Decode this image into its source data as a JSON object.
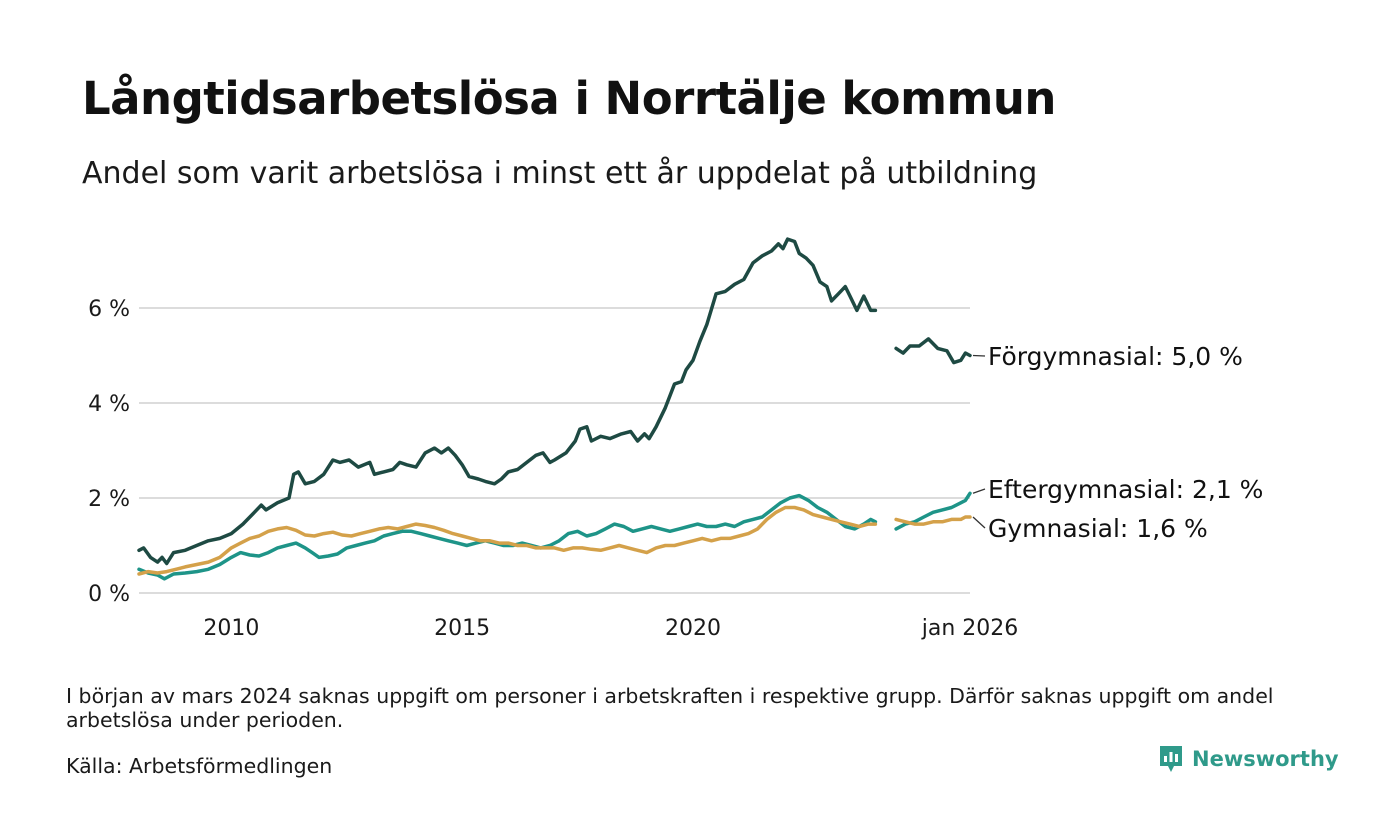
{
  "header": {
    "title": "Långtidsarbetslösa i Norrtälje kommun",
    "subtitle": "Andel som varit arbetslösa i minst ett år uppdelat på utbildning"
  },
  "footer": {
    "note": "I början av mars 2024 saknas uppgift om personer i arbetskraften i respektive grupp. Därför saknas uppgift om andel arbetslösa under perioden.",
    "source": "Källa: Arbetsförmedlingen",
    "logo_text": "Newsworthy",
    "logo_icon": "newsworthy-logo-icon"
  },
  "chart_data": {
    "type": "line",
    "title": "Långtidsarbetslösa i Norrtälje kommun",
    "xlabel": "",
    "ylabel": "",
    "x_range": [
      2008.0,
      2026.0
    ],
    "ylim": [
      0,
      8
    ],
    "y_ticks": [
      {
        "value": 0,
        "label": "0 %"
      },
      {
        "value": 2,
        "label": "2 %"
      },
      {
        "value": 4,
        "label": "4 %"
      },
      {
        "value": 6,
        "label": "6 %"
      }
    ],
    "x_ticks": [
      {
        "value": 2010,
        "label": "2010"
      },
      {
        "value": 2015,
        "label": "2015"
      },
      {
        "value": 2020,
        "label": "2020"
      },
      {
        "value": 2026.0,
        "label": "jan 2026"
      }
    ],
    "gap": [
      2023.85,
      2024.3
    ],
    "series": [
      {
        "name": "Förgymnasial",
        "label": "Förgymnasial: 5,0 %",
        "color": "#1e4a43",
        "points": [
          [
            2008.0,
            0.9
          ],
          [
            2008.1,
            0.95
          ],
          [
            2008.25,
            0.75
          ],
          [
            2008.4,
            0.65
          ],
          [
            2008.5,
            0.75
          ],
          [
            2008.6,
            0.62
          ],
          [
            2008.75,
            0.85
          ],
          [
            2009.0,
            0.9
          ],
          [
            2009.25,
            1.0
          ],
          [
            2009.5,
            1.1
          ],
          [
            2009.75,
            1.15
          ],
          [
            2010.0,
            1.25
          ],
          [
            2010.25,
            1.45
          ],
          [
            2010.5,
            1.7
          ],
          [
            2010.65,
            1.85
          ],
          [
            2010.75,
            1.75
          ],
          [
            2011.0,
            1.9
          ],
          [
            2011.25,
            2.0
          ],
          [
            2011.35,
            2.5
          ],
          [
            2011.45,
            2.55
          ],
          [
            2011.6,
            2.3
          ],
          [
            2011.8,
            2.35
          ],
          [
            2012.0,
            2.5
          ],
          [
            2012.2,
            2.8
          ],
          [
            2012.35,
            2.75
          ],
          [
            2012.55,
            2.8
          ],
          [
            2012.75,
            2.65
          ],
          [
            2013.0,
            2.75
          ],
          [
            2013.1,
            2.5
          ],
          [
            2013.3,
            2.55
          ],
          [
            2013.5,
            2.6
          ],
          [
            2013.65,
            2.75
          ],
          [
            2013.8,
            2.7
          ],
          [
            2014.0,
            2.65
          ],
          [
            2014.2,
            2.95
          ],
          [
            2014.4,
            3.05
          ],
          [
            2014.55,
            2.95
          ],
          [
            2014.7,
            3.05
          ],
          [
            2014.85,
            2.9
          ],
          [
            2015.0,
            2.7
          ],
          [
            2015.15,
            2.45
          ],
          [
            2015.35,
            2.4
          ],
          [
            2015.5,
            2.35
          ],
          [
            2015.7,
            2.3
          ],
          [
            2015.85,
            2.4
          ],
          [
            2016.0,
            2.55
          ],
          [
            2016.2,
            2.6
          ],
          [
            2016.4,
            2.75
          ],
          [
            2016.6,
            2.9
          ],
          [
            2016.75,
            2.95
          ],
          [
            2016.9,
            2.75
          ],
          [
            2017.0,
            2.8
          ],
          [
            2017.25,
            2.95
          ],
          [
            2017.45,
            3.2
          ],
          [
            2017.55,
            3.45
          ],
          [
            2017.7,
            3.5
          ],
          [
            2017.8,
            3.2
          ],
          [
            2018.0,
            3.3
          ],
          [
            2018.2,
            3.25
          ],
          [
            2018.45,
            3.35
          ],
          [
            2018.65,
            3.4
          ],
          [
            2018.8,
            3.2
          ],
          [
            2018.95,
            3.35
          ],
          [
            2019.05,
            3.25
          ],
          [
            2019.2,
            3.5
          ],
          [
            2019.4,
            3.9
          ],
          [
            2019.6,
            4.4
          ],
          [
            2019.75,
            4.45
          ],
          [
            2019.85,
            4.7
          ],
          [
            2020.0,
            4.9
          ],
          [
            2020.15,
            5.3
          ],
          [
            2020.3,
            5.65
          ],
          [
            2020.5,
            6.3
          ],
          [
            2020.7,
            6.35
          ],
          [
            2020.9,
            6.5
          ],
          [
            2021.1,
            6.6
          ],
          [
            2021.3,
            6.95
          ],
          [
            2021.5,
            7.1
          ],
          [
            2021.7,
            7.2
          ],
          [
            2021.85,
            7.35
          ],
          [
            2021.95,
            7.25
          ],
          [
            2022.05,
            7.45
          ],
          [
            2022.2,
            7.4
          ],
          [
            2022.3,
            7.15
          ],
          [
            2022.45,
            7.05
          ],
          [
            2022.6,
            6.9
          ],
          [
            2022.75,
            6.55
          ],
          [
            2022.9,
            6.45
          ],
          [
            2023.0,
            6.15
          ],
          [
            2023.15,
            6.3
          ],
          [
            2023.3,
            6.45
          ],
          [
            2023.4,
            6.25
          ],
          [
            2023.55,
            5.95
          ],
          [
            2023.7,
            6.25
          ],
          [
            2023.85,
            5.95
          ],
          [
            2023.95,
            5.95
          ],
          [
            null,
            null
          ],
          [
            2024.4,
            5.15
          ],
          [
            2024.55,
            5.05
          ],
          [
            2024.7,
            5.2
          ],
          [
            2024.9,
            5.2
          ],
          [
            2025.1,
            5.35
          ],
          [
            2025.3,
            5.15
          ],
          [
            2025.5,
            5.1
          ],
          [
            2025.65,
            4.85
          ],
          [
            2025.8,
            4.9
          ],
          [
            2025.9,
            5.05
          ],
          [
            2026.0,
            5.0
          ]
        ]
      },
      {
        "name": "Eftergymnasial",
        "label": "Eftergymnasial: 2,1 %",
        "color": "#1e9488",
        "points": [
          [
            2008.0,
            0.5
          ],
          [
            2008.2,
            0.42
          ],
          [
            2008.4,
            0.38
          ],
          [
            2008.55,
            0.3
          ],
          [
            2008.75,
            0.4
          ],
          [
            2009.0,
            0.42
          ],
          [
            2009.25,
            0.45
          ],
          [
            2009.5,
            0.5
          ],
          [
            2009.75,
            0.6
          ],
          [
            2010.0,
            0.75
          ],
          [
            2010.2,
            0.85
          ],
          [
            2010.4,
            0.8
          ],
          [
            2010.6,
            0.78
          ],
          [
            2010.8,
            0.85
          ],
          [
            2011.0,
            0.95
          ],
          [
            2011.2,
            1.0
          ],
          [
            2011.4,
            1.05
          ],
          [
            2011.6,
            0.95
          ],
          [
            2011.75,
            0.85
          ],
          [
            2011.9,
            0.75
          ],
          [
            2012.1,
            0.78
          ],
          [
            2012.3,
            0.82
          ],
          [
            2012.5,
            0.95
          ],
          [
            2012.7,
            1.0
          ],
          [
            2012.9,
            1.05
          ],
          [
            2013.1,
            1.1
          ],
          [
            2013.3,
            1.2
          ],
          [
            2013.5,
            1.25
          ],
          [
            2013.7,
            1.3
          ],
          [
            2013.9,
            1.3
          ],
          [
            2014.1,
            1.25
          ],
          [
            2014.3,
            1.2
          ],
          [
            2014.5,
            1.15
          ],
          [
            2014.7,
            1.1
          ],
          [
            2014.9,
            1.05
          ],
          [
            2015.1,
            1.0
          ],
          [
            2015.3,
            1.05
          ],
          [
            2015.5,
            1.1
          ],
          [
            2015.7,
            1.05
          ],
          [
            2015.9,
            1.0
          ],
          [
            2016.1,
            1.0
          ],
          [
            2016.3,
            1.05
          ],
          [
            2016.5,
            1.0
          ],
          [
            2016.7,
            0.95
          ],
          [
            2016.9,
            1.0
          ],
          [
            2017.1,
            1.1
          ],
          [
            2017.3,
            1.25
          ],
          [
            2017.5,
            1.3
          ],
          [
            2017.7,
            1.2
          ],
          [
            2017.9,
            1.25
          ],
          [
            2018.1,
            1.35
          ],
          [
            2018.3,
            1.45
          ],
          [
            2018.5,
            1.4
          ],
          [
            2018.7,
            1.3
          ],
          [
            2018.9,
            1.35
          ],
          [
            2019.1,
            1.4
          ],
          [
            2019.3,
            1.35
          ],
          [
            2019.5,
            1.3
          ],
          [
            2019.7,
            1.35
          ],
          [
            2019.9,
            1.4
          ],
          [
            2020.1,
            1.45
          ],
          [
            2020.3,
            1.4
          ],
          [
            2020.5,
            1.4
          ],
          [
            2020.7,
            1.45
          ],
          [
            2020.9,
            1.4
          ],
          [
            2021.1,
            1.5
          ],
          [
            2021.3,
            1.55
          ],
          [
            2021.5,
            1.6
          ],
          [
            2021.7,
            1.75
          ],
          [
            2021.9,
            1.9
          ],
          [
            2022.1,
            2.0
          ],
          [
            2022.3,
            2.05
          ],
          [
            2022.5,
            1.95
          ],
          [
            2022.7,
            1.8
          ],
          [
            2022.9,
            1.7
          ],
          [
            2023.1,
            1.55
          ],
          [
            2023.3,
            1.4
          ],
          [
            2023.5,
            1.35
          ],
          [
            2023.7,
            1.45
          ],
          [
            2023.85,
            1.55
          ],
          [
            2023.95,
            1.5
          ],
          [
            null,
            null
          ],
          [
            2024.4,
            1.35
          ],
          [
            2024.6,
            1.45
          ],
          [
            2024.8,
            1.5
          ],
          [
            2025.0,
            1.6
          ],
          [
            2025.2,
            1.7
          ],
          [
            2025.4,
            1.75
          ],
          [
            2025.6,
            1.8
          ],
          [
            2025.8,
            1.9
          ],
          [
            2025.9,
            1.95
          ],
          [
            2026.0,
            2.1
          ]
        ]
      },
      {
        "name": "Gymnasial",
        "label": "Gymnasial: 1,6 %",
        "color": "#d4a14a",
        "points": [
          [
            2008.0,
            0.4
          ],
          [
            2008.2,
            0.45
          ],
          [
            2008.4,
            0.42
          ],
          [
            2008.6,
            0.45
          ],
          [
            2008.8,
            0.5
          ],
          [
            2009.0,
            0.55
          ],
          [
            2009.25,
            0.6
          ],
          [
            2009.5,
            0.65
          ],
          [
            2009.75,
            0.75
          ],
          [
            2010.0,
            0.95
          ],
          [
            2010.2,
            1.05
          ],
          [
            2010.4,
            1.15
          ],
          [
            2010.6,
            1.2
          ],
          [
            2010.8,
            1.3
          ],
          [
            2011.0,
            1.35
          ],
          [
            2011.2,
            1.38
          ],
          [
            2011.4,
            1.32
          ],
          [
            2011.6,
            1.22
          ],
          [
            2011.8,
            1.2
          ],
          [
            2012.0,
            1.25
          ],
          [
            2012.2,
            1.28
          ],
          [
            2012.4,
            1.22
          ],
          [
            2012.6,
            1.2
          ],
          [
            2012.8,
            1.25
          ],
          [
            2013.0,
            1.3
          ],
          [
            2013.2,
            1.35
          ],
          [
            2013.4,
            1.38
          ],
          [
            2013.6,
            1.35
          ],
          [
            2013.8,
            1.4
          ],
          [
            2014.0,
            1.45
          ],
          [
            2014.2,
            1.42
          ],
          [
            2014.4,
            1.38
          ],
          [
            2014.6,
            1.32
          ],
          [
            2014.8,
            1.25
          ],
          [
            2015.0,
            1.2
          ],
          [
            2015.2,
            1.15
          ],
          [
            2015.4,
            1.1
          ],
          [
            2015.6,
            1.1
          ],
          [
            2015.8,
            1.05
          ],
          [
            2016.0,
            1.05
          ],
          [
            2016.2,
            1.0
          ],
          [
            2016.4,
            1.0
          ],
          [
            2016.6,
            0.95
          ],
          [
            2016.8,
            0.95
          ],
          [
            2017.0,
            0.95
          ],
          [
            2017.2,
            0.9
          ],
          [
            2017.4,
            0.95
          ],
          [
            2017.6,
            0.95
          ],
          [
            2017.8,
            0.92
          ],
          [
            2018.0,
            0.9
          ],
          [
            2018.2,
            0.95
          ],
          [
            2018.4,
            1.0
          ],
          [
            2018.6,
            0.95
          ],
          [
            2018.8,
            0.9
          ],
          [
            2019.0,
            0.85
          ],
          [
            2019.2,
            0.95
          ],
          [
            2019.4,
            1.0
          ],
          [
            2019.6,
            1.0
          ],
          [
            2019.8,
            1.05
          ],
          [
            2020.0,
            1.1
          ],
          [
            2020.2,
            1.15
          ],
          [
            2020.4,
            1.1
          ],
          [
            2020.6,
            1.15
          ],
          [
            2020.8,
            1.15
          ],
          [
            2021.0,
            1.2
          ],
          [
            2021.2,
            1.25
          ],
          [
            2021.4,
            1.35
          ],
          [
            2021.6,
            1.55
          ],
          [
            2021.8,
            1.7
          ],
          [
            2022.0,
            1.8
          ],
          [
            2022.2,
            1.8
          ],
          [
            2022.4,
            1.75
          ],
          [
            2022.6,
            1.65
          ],
          [
            2022.8,
            1.6
          ],
          [
            2023.0,
            1.55
          ],
          [
            2023.2,
            1.5
          ],
          [
            2023.4,
            1.45
          ],
          [
            2023.6,
            1.4
          ],
          [
            2023.8,
            1.45
          ],
          [
            2023.95,
            1.45
          ],
          [
            null,
            null
          ],
          [
            2024.4,
            1.55
          ],
          [
            2024.6,
            1.5
          ],
          [
            2024.8,
            1.45
          ],
          [
            2025.0,
            1.45
          ],
          [
            2025.2,
            1.5
          ],
          [
            2025.4,
            1.5
          ],
          [
            2025.6,
            1.55
          ],
          [
            2025.8,
            1.55
          ],
          [
            2025.9,
            1.6
          ],
          [
            2026.0,
            1.6
          ]
        ]
      }
    ]
  }
}
